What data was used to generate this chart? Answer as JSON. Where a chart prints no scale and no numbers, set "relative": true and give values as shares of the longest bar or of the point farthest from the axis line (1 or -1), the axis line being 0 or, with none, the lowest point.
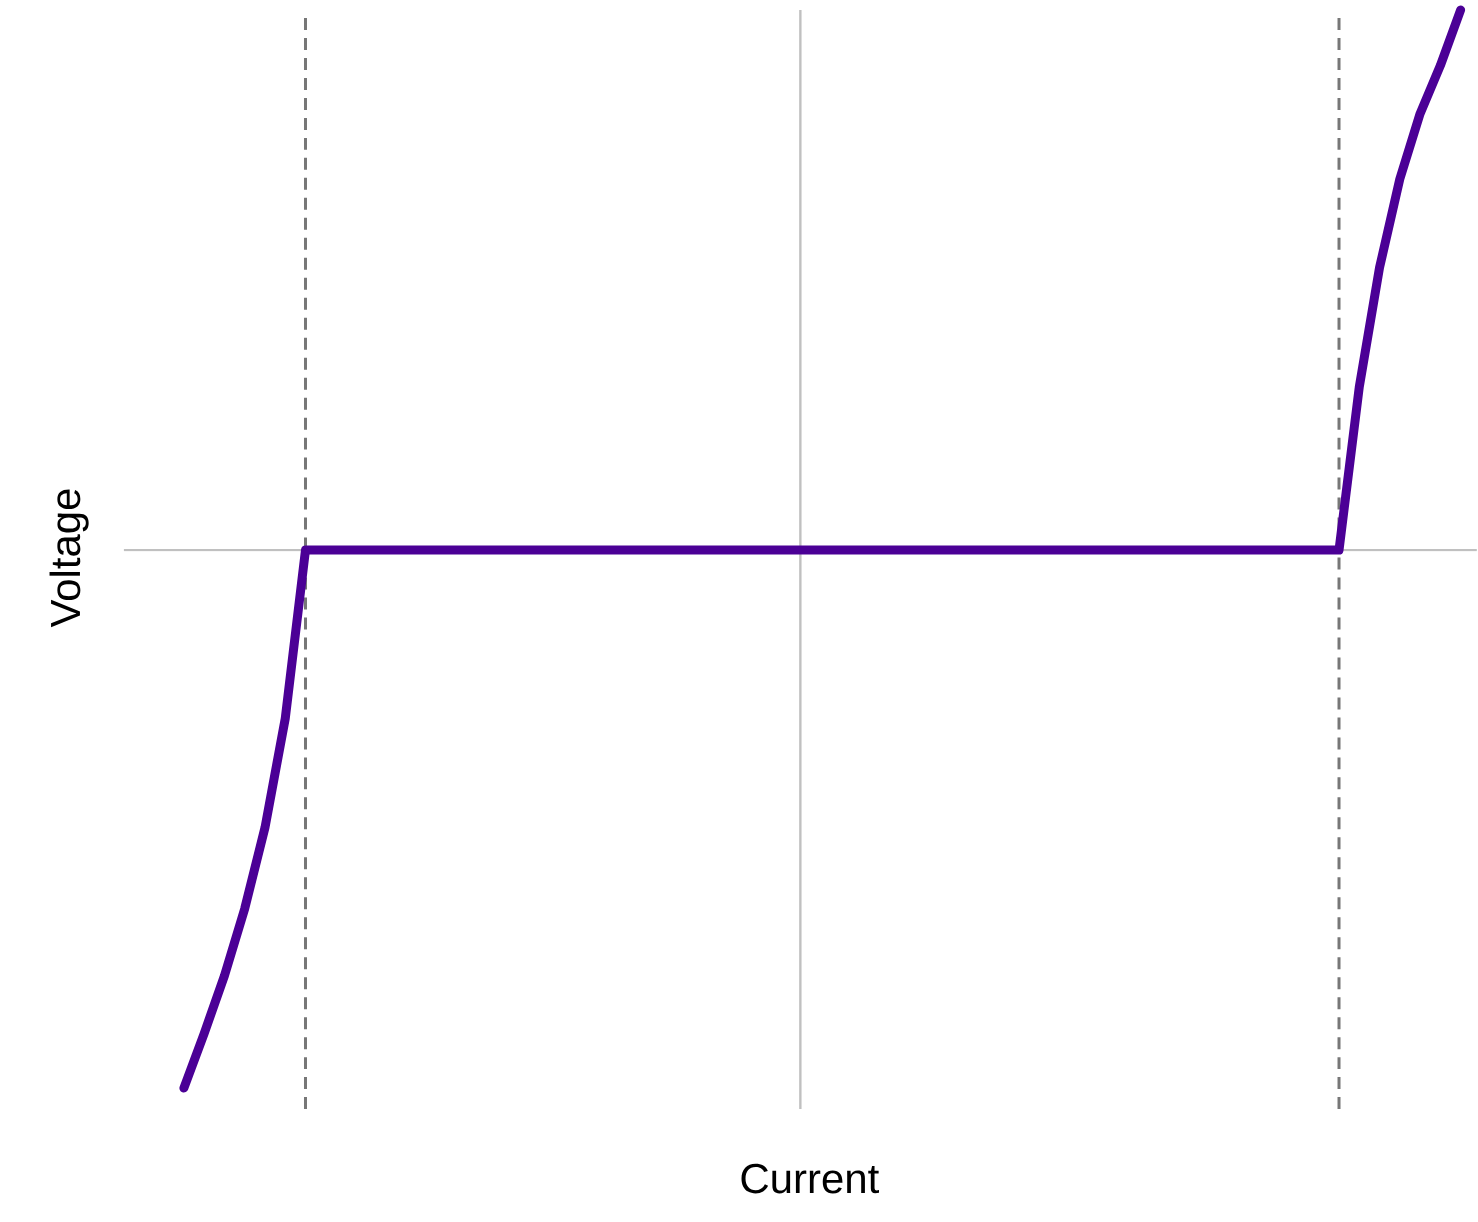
{
  "chart_data": {
    "type": "line",
    "xlabel": "Current",
    "ylabel": "Voltage",
    "relative": true,
    "categories": [
      null,
      null,
      null,
      null,
      null,
      null,
      null,
      null,
      null,
      null,
      null,
      null,
      null,
      null,
      null,
      null,
      null,
      null,
      null,
      null,
      null,
      null,
      null,
      null,
      null,
      null,
      null,
      null,
      null,
      null,
      null,
      null,
      null,
      null,
      null,
      null,
      null,
      null,
      null,
      null,
      null,
      null,
      null,
      null,
      null,
      null,
      null,
      null,
      null,
      null,
      null,
      null,
      null,
      null,
      null,
      null,
      null,
      null,
      null,
      null,
      null,
      null,
      null,
      null
    ],
    "series": [
      {
        "color": "#4b0096",
        "values": [
          -0.996,
          -0.895,
          -0.788,
          -0.664,
          -0.514,
          -0.312,
          0,
          0,
          0,
          0,
          0,
          0,
          0,
          0,
          0,
          0,
          0,
          0,
          0,
          0,
          0,
          0,
          0,
          0,
          0,
          0,
          0,
          0,
          0,
          0,
          0,
          0,
          0,
          0,
          0,
          0,
          0,
          0,
          0,
          0,
          0,
          0,
          0,
          0,
          0,
          0,
          0,
          0,
          0,
          0,
          0,
          0,
          0,
          0,
          0,
          0,
          0,
          0,
          0.302,
          0.523,
          0.687,
          0.808,
          0.897,
          1
        ]
      }
    ]
  }
}
